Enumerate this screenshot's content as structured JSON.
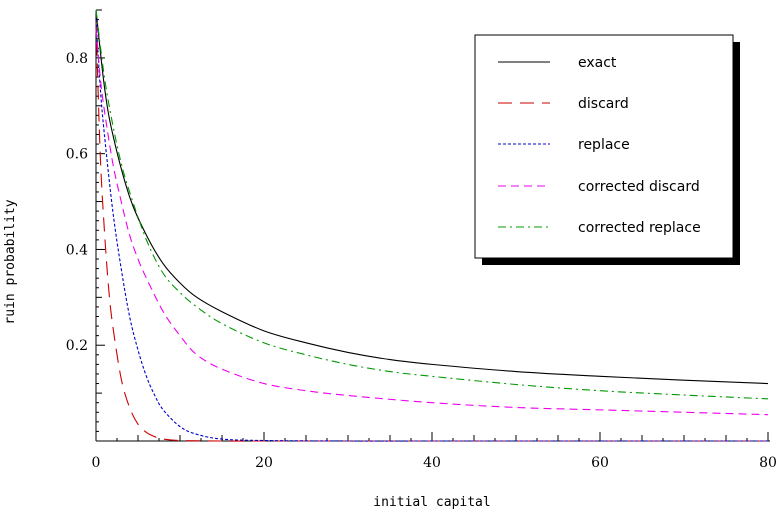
{
  "chart_data": {
    "type": "line",
    "title": "",
    "xlabel": "initial capital",
    "ylabel": "ruin probability",
    "xlim": [
      0,
      80
    ],
    "ylim": [
      0,
      0.9
    ],
    "x_ticks": [
      0,
      20,
      40,
      60,
      80
    ],
    "x_tick_labels": [
      "0",
      "20",
      "40",
      "60",
      "80"
    ],
    "y_ticks": [
      0.2,
      0.4,
      0.6,
      0.8
    ],
    "y_tick_labels": [
      "0.2",
      "0.4",
      "0.6",
      "0.8"
    ],
    "grid": false,
    "legend_position": "top-right",
    "series": [
      {
        "name": "exact",
        "color": "#000000",
        "dash": "solid",
        "x": [
          0,
          1,
          2,
          4,
          6,
          8,
          10,
          12,
          15,
          20,
          25,
          30,
          35,
          40,
          50,
          60,
          70,
          80
        ],
        "y": [
          0.9,
          0.74,
          0.64,
          0.51,
          0.43,
          0.37,
          0.33,
          0.3,
          0.27,
          0.23,
          0.205,
          0.185,
          0.17,
          0.16,
          0.145,
          0.135,
          0.127,
          0.12
        ]
      },
      {
        "name": "discard",
        "color": "#cc0000",
        "dash": "long",
        "x": [
          0,
          0.5,
          1,
          1.5,
          2,
          3,
          4,
          5,
          6,
          7,
          8,
          10,
          15,
          20,
          30,
          40,
          50,
          60,
          70,
          80
        ],
        "y": [
          0.88,
          0.6,
          0.44,
          0.32,
          0.24,
          0.13,
          0.07,
          0.035,
          0.018,
          0.009,
          0.004,
          0.001,
          0,
          0,
          0,
          0,
          0,
          0,
          0,
          0
        ]
      },
      {
        "name": "replace",
        "color": "#0000cc",
        "dash": "short",
        "x": [
          0,
          0.5,
          1,
          2,
          3,
          4,
          5,
          6,
          7,
          8,
          10,
          12,
          15,
          20,
          30,
          40,
          50,
          60,
          70,
          80
        ],
        "y": [
          0.88,
          0.74,
          0.64,
          0.48,
          0.36,
          0.26,
          0.19,
          0.135,
          0.095,
          0.065,
          0.03,
          0.014,
          0.004,
          0.001,
          0,
          0,
          0,
          0,
          0,
          0
        ]
      },
      {
        "name": "corrected discard",
        "color": "#ee00ee",
        "dash": "medium",
        "x": [
          0,
          0.5,
          1,
          2,
          3,
          4,
          5,
          6,
          8,
          10,
          12,
          15,
          20,
          25,
          30,
          40,
          50,
          60,
          70,
          80
        ],
        "y": [
          0.86,
          0.76,
          0.69,
          0.58,
          0.5,
          0.43,
          0.38,
          0.34,
          0.27,
          0.22,
          0.18,
          0.15,
          0.12,
          0.105,
          0.095,
          0.08,
          0.07,
          0.065,
          0.06,
          0.055
        ]
      },
      {
        "name": "corrected replace",
        "color": "#009900",
        "dash": "dashdot",
        "x": [
          0,
          1,
          2,
          3,
          4,
          6,
          8,
          10,
          12,
          15,
          20,
          25,
          30,
          35,
          40,
          50,
          60,
          70,
          80
        ],
        "y": [
          0.9,
          0.76,
          0.66,
          0.58,
          0.52,
          0.42,
          0.35,
          0.31,
          0.28,
          0.245,
          0.205,
          0.18,
          0.16,
          0.145,
          0.135,
          0.118,
          0.105,
          0.096,
          0.088
        ]
      }
    ]
  }
}
